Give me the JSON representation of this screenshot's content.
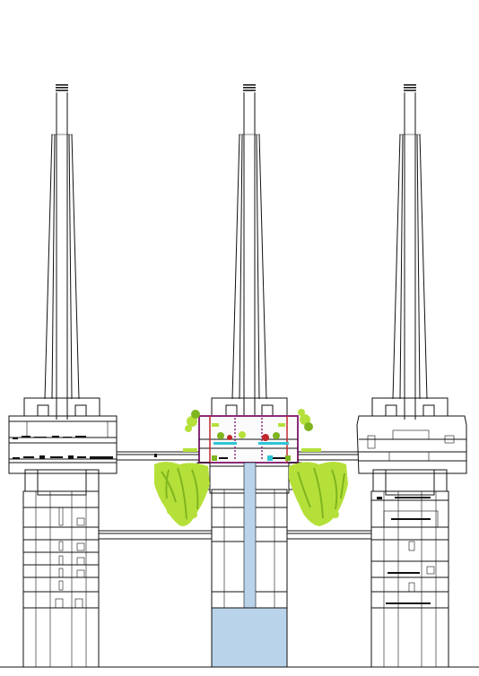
{
  "drawing": {
    "type": "architectural-section",
    "towers": [
      {
        "id": "left",
        "position": "left"
      },
      {
        "id": "center",
        "position": "center"
      },
      {
        "id": "right",
        "position": "right"
      }
    ],
    "colors": {
      "line": "#111111",
      "water": "#b9d3ea",
      "foliage": "#b5e03a",
      "foliage_dark": "#7fb51f",
      "accent_red": "#c0282d",
      "accent_magenta": "#8a2b7a",
      "accent_cyan": "#2ec4d6"
    }
  }
}
